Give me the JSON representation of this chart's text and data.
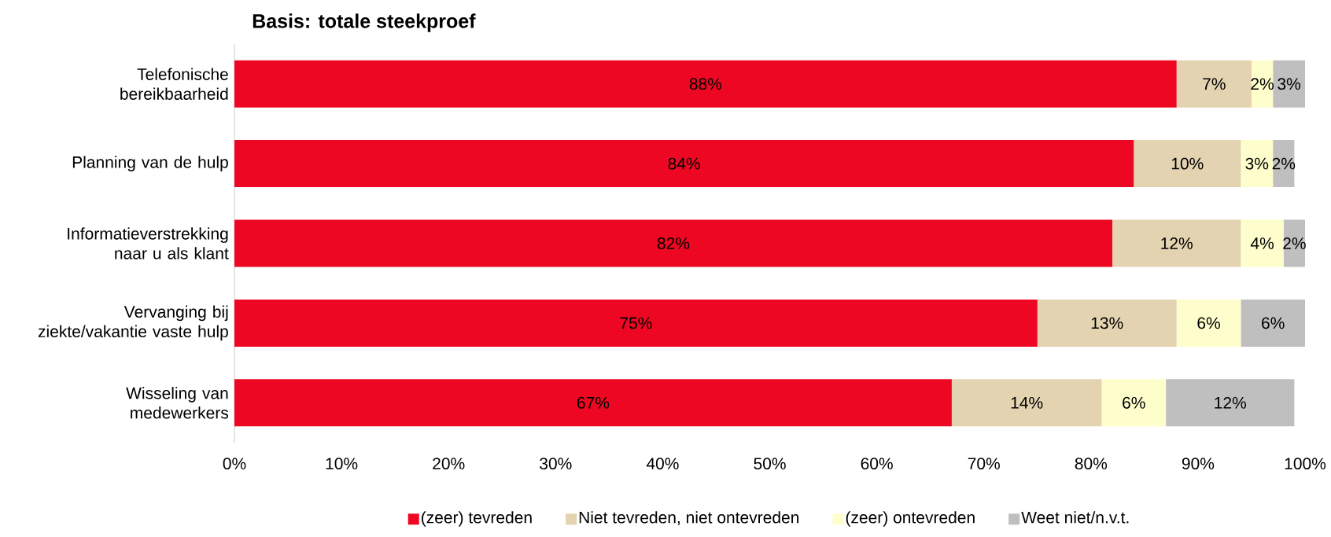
{
  "chart_data": {
    "type": "bar",
    "orientation": "horizontal",
    "stacked": true,
    "title": "Basis: totale steekproef",
    "categories": [
      "Telefonische bereikbaarheid",
      "Planning van de hulp",
      "Informatieverstrekking naar u als klant",
      "Vervanging bij ziekte/vakantie vaste hulp",
      "Wisseling van medewerkers"
    ],
    "series": [
      {
        "name": "(zeer) tevreden",
        "color": "#ee0722",
        "values": [
          88,
          84,
          82,
          75,
          67
        ],
        "value_labels": [
          "88%",
          "84%",
          "82%",
          "75%",
          "67%"
        ]
      },
      {
        "name": "Niet tevreden, niet ontevreden",
        "color": "#e3d3b0",
        "values": [
          7,
          10,
          12,
          13,
          14
        ],
        "value_labels": [
          "7%",
          "10%",
          "12%",
          "13%",
          "14%"
        ]
      },
      {
        "name": "(zeer) ontevreden",
        "color": "#fefecc",
        "values": [
          2,
          3,
          4,
          6,
          6
        ],
        "value_labels": [
          "2%",
          "3%",
          "4%",
          "6%",
          "6%"
        ]
      },
      {
        "name": "Weet niet/n.v.t.",
        "color": "#bfbfbf",
        "values": [
          3,
          2,
          2,
          6,
          12
        ],
        "value_labels": [
          "3%",
          "2%",
          "2%",
          "6%",
          "12%"
        ]
      }
    ],
    "xlim": [
      0,
      100
    ],
    "xticks": [
      {
        "value": 0,
        "label": "0%"
      },
      {
        "value": 10,
        "label": "10%"
      },
      {
        "value": 20,
        "label": "20%"
      },
      {
        "value": 30,
        "label": "30%"
      },
      {
        "value": 40,
        "label": "40%"
      },
      {
        "value": 50,
        "label": "50%"
      },
      {
        "value": 60,
        "label": "60%"
      },
      {
        "value": 70,
        "label": "70%"
      },
      {
        "value": 80,
        "label": "80%"
      },
      {
        "value": 90,
        "label": "90%"
      },
      {
        "value": 100,
        "label": "100%"
      }
    ],
    "legend": "bottom",
    "grid": false
  }
}
